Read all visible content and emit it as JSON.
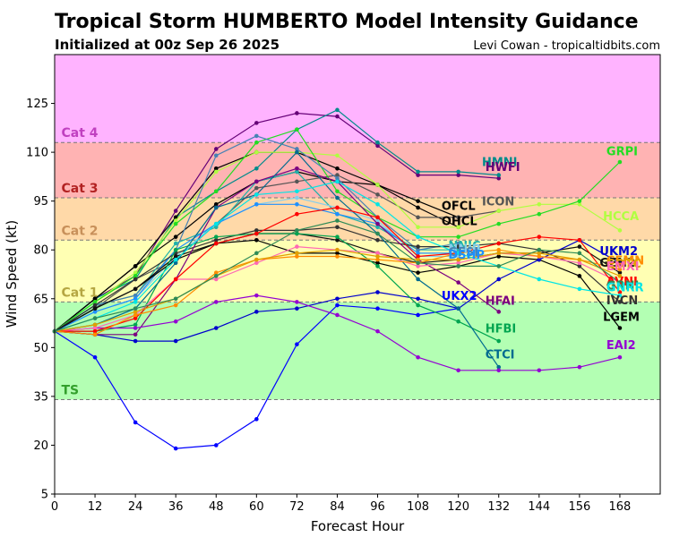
{
  "header": {
    "title": "Tropical Storm HUMBERTO Model Intensity Guidance",
    "subtitle": "Initialized at 00z Sep 26 2025",
    "credit": "Levi Cowan - tropicaltidbits.com"
  },
  "colors": {
    "axis": "#000000",
    "grid_line": "#777777"
  },
  "chart_data": {
    "type": "line",
    "xlabel": "Forecast Hour",
    "ylabel": "Wind Speed (kt)",
    "xlim": [
      0,
      180
    ],
    "ylim": [
      5,
      140
    ],
    "x_ticks": [
      0,
      12,
      24,
      36,
      48,
      60,
      72,
      84,
      96,
      108,
      120,
      132,
      144,
      156,
      168
    ],
    "y_ticks": [
      5,
      20,
      35,
      50,
      65,
      80,
      95,
      110,
      125
    ],
    "bands": [
      {
        "label": "TS",
        "from": 34,
        "to": 64,
        "color": "#b3ffb3",
        "text_color": "#33a02c"
      },
      {
        "label": "Cat 1",
        "from": 64,
        "to": 83,
        "color": "#ffffb3",
        "text_color": "#b5a642"
      },
      {
        "label": "Cat 2",
        "from": 83,
        "to": 96,
        "color": "#ffd9a8",
        "text_color": "#c8905a"
      },
      {
        "label": "Cat 3",
        "from": 96,
        "to": 113,
        "color": "#ffb3b3",
        "text_color": "#b22222"
      },
      {
        "label": "Cat 4",
        "from": 113,
        "to": 140,
        "color": "#ffb3ff",
        "text_color": "#c040c0"
      }
    ],
    "band_lines": [
      34,
      64,
      83,
      96,
      113
    ],
    "series": [
      {
        "name": "HWFI",
        "color": "#660077",
        "x": [
          0,
          12,
          24,
          36,
          48,
          60,
          72,
          84,
          96,
          108,
          120,
          132
        ],
        "values": [
          55,
          65,
          72,
          92,
          111,
          119,
          122,
          121,
          112,
          103,
          103,
          102
        ]
      },
      {
        "name": "HMNI",
        "color": "#008b8b",
        "x": [
          0,
          12,
          24,
          36,
          48,
          60,
          72,
          84,
          96,
          108,
          120,
          132
        ],
        "values": [
          55,
          65,
          71,
          90,
          98,
          105,
          117,
          123,
          113,
          104,
          104,
          103
        ]
      },
      {
        "name": "OFCL",
        "color": "#000000",
        "x": [
          0,
          12,
          24,
          36,
          48,
          60,
          72,
          84,
          96,
          108,
          120
        ],
        "values": [
          55,
          65,
          75,
          90,
          105,
          110,
          110,
          105,
          100,
          93,
          87
        ]
      },
      {
        "name": "OHCL",
        "color": "#000000",
        "x": [
          0,
          12,
          24,
          36,
          48,
          60,
          72,
          84,
          96,
          108,
          120
        ],
        "values": [
          55,
          65,
          75,
          84,
          94,
          101,
          104,
          101,
          100,
          95,
          90
        ]
      },
      {
        "name": "ICON",
        "color": "#555555",
        "x": [
          0,
          12,
          24,
          36,
          48,
          60,
          72,
          84,
          96,
          108,
          120,
          132
        ],
        "values": [
          55,
          62,
          71,
          77,
          88,
          99,
          101,
          103,
          97,
          90,
          90,
          92
        ]
      },
      {
        "name": "HCCA",
        "color": "#b0ff40",
        "x": [
          0,
          12,
          24,
          36,
          48,
          60,
          72,
          84,
          96,
          108,
          120,
          132,
          144,
          156,
          168
        ],
        "values": [
          55,
          64,
          73,
          89,
          104,
          110,
          110,
          109,
          100,
          87,
          87,
          92,
          94,
          94,
          86
        ]
      },
      {
        "name": "GRPI",
        "color": "#22dd22",
        "x": [
          0,
          12,
          24,
          36,
          48,
          60,
          72,
          84,
          96,
          108,
          120,
          132,
          144,
          156,
          168
        ],
        "values": [
          55,
          64,
          72,
          88,
          98,
          113,
          117,
          98,
          90,
          84,
          84,
          88,
          91,
          95,
          107
        ]
      },
      {
        "name": "NNIC",
        "color": "#20b2aa",
        "x": [
          0,
          12,
          24,
          36,
          48,
          60,
          72,
          84,
          96,
          108,
          120
        ],
        "values": [
          55,
          63,
          66,
          82,
          87,
          101,
          104,
          91,
          87,
          80,
          80
        ]
      },
      {
        "name": "NNIB",
        "color": "#87ceeb",
        "x": [
          0,
          12,
          24,
          36,
          48,
          60,
          72,
          84,
          96,
          108,
          120
        ],
        "values": [
          55,
          61,
          65,
          78,
          88,
          94,
          96,
          93,
          89,
          78,
          78
        ]
      },
      {
        "name": "GFSI",
        "color": "#4682b4",
        "x": [
          0,
          12,
          24,
          36,
          48,
          60,
          72,
          84,
          96,
          108,
          120
        ],
        "values": [
          55,
          63,
          66,
          80,
          109,
          115,
          111,
          102,
          90,
          80,
          82
        ]
      },
      {
        "name": "DSHP",
        "color": "#1e90ff",
        "x": [
          0,
          12,
          24,
          36,
          48,
          60,
          72,
          84,
          96,
          108,
          120
        ],
        "values": [
          55,
          61,
          65,
          80,
          88,
          94,
          94,
          91,
          88,
          79,
          79
        ]
      },
      {
        "name": "LGEM",
        "color": "#000000",
        "x": [
          0,
          12,
          24,
          36,
          48,
          60,
          72,
          84,
          96,
          108,
          120,
          132,
          144,
          156,
          168
        ],
        "values": [
          55,
          62,
          68,
          77,
          82,
          83,
          79,
          79,
          76,
          73,
          75,
          78,
          77,
          72,
          56
        ]
      },
      {
        "name": "IVCN",
        "color": "#333333",
        "x": [
          0,
          12,
          24,
          36,
          48,
          60,
          72,
          84,
          96,
          108,
          120,
          132,
          144,
          156,
          168
        ],
        "values": [
          55,
          63,
          71,
          79,
          83,
          86,
          86,
          87,
          83,
          81,
          81,
          82,
          80,
          75,
          64
        ]
      },
      {
        "name": "GEN2",
        "color": "#111111",
        "x": [
          0,
          12,
          24,
          36,
          48,
          60,
          72,
          84,
          96,
          108,
          120,
          132,
          144,
          156,
          168
        ],
        "values": [
          55,
          62,
          68,
          78,
          82,
          85,
          85,
          83,
          79,
          76,
          77,
          79,
          79,
          81,
          73
        ]
      },
      {
        "name": "UKM2",
        "color": "#0000cd",
        "x": [
          0,
          12,
          24,
          36,
          48,
          60,
          72,
          84,
          96,
          108,
          120,
          132,
          144,
          156,
          168
        ],
        "values": [
          55,
          54,
          52,
          52,
          56,
          61,
          62,
          65,
          67,
          65,
          62,
          71,
          77,
          83,
          76
        ]
      },
      {
        "name": "UKX2",
        "color": "#0000ff",
        "x": [
          0,
          12,
          24,
          36,
          48,
          60,
          72,
          84,
          96,
          108,
          120
        ],
        "values": [
          55,
          47,
          27,
          19,
          20,
          28,
          51,
          63,
          62,
          60,
          62
        ]
      },
      {
        "name": "HFAI",
        "color": "#7b0080",
        "x": [
          0,
          12,
          24,
          36,
          48,
          60,
          72,
          84,
          96,
          108,
          120,
          132
        ],
        "values": [
          55,
          54,
          54,
          71,
          93,
          101,
          105,
          101,
          88,
          77,
          70,
          61
        ]
      },
      {
        "name": "HFBI",
        "color": "#00a550",
        "x": [
          0,
          12,
          24,
          36,
          48,
          60,
          72,
          84,
          96,
          108,
          120,
          132
        ],
        "values": [
          55,
          55,
          57,
          80,
          84,
          85,
          85,
          84,
          75,
          63,
          58,
          52
        ]
      },
      {
        "name": "CTCI",
        "color": "#006b8f",
        "x": [
          0,
          12,
          24,
          36,
          48,
          60,
          72,
          84,
          96,
          108,
          120,
          132
        ],
        "values": [
          55,
          57,
          62,
          76,
          93,
          97,
          110,
          96,
          85,
          71,
          62,
          44
        ]
      },
      {
        "name": "EAI2",
        "color": "#9400d3",
        "x": [
          0,
          12,
          24,
          36,
          48,
          60,
          72,
          84,
          96,
          108,
          120,
          132,
          144,
          156,
          168
        ],
        "values": [
          55,
          56,
          56,
          58,
          64,
          66,
          64,
          60,
          55,
          47,
          43,
          43,
          43,
          44,
          47
        ]
      },
      {
        "name": "EMXI",
        "color": "#ff69b4",
        "x": [
          0,
          12,
          24,
          36,
          48,
          60,
          72,
          84,
          96,
          108,
          120,
          132,
          144,
          156,
          168
        ],
        "values": [
          55,
          56,
          60,
          71,
          71,
          76,
          81,
          80,
          79,
          75,
          76,
          79,
          78,
          76,
          70
        ]
      },
      {
        "name": "AVNI",
        "color": "#ff0000",
        "x": [
          0,
          12,
          24,
          36,
          48,
          60,
          72,
          84,
          96,
          108,
          120,
          132,
          144,
          156,
          168
        ],
        "values": [
          55,
          55,
          59,
          71,
          82,
          85,
          91,
          93,
          90,
          78,
          79,
          82,
          84,
          83,
          67
        ]
      },
      {
        "name": "CEMN",
        "color": "#ff8c00",
        "x": [
          0,
          12,
          24,
          36,
          48,
          60,
          72,
          84,
          96,
          108,
          120,
          132,
          144,
          156,
          168
        ],
        "values": [
          55,
          54,
          60,
          63,
          73,
          77,
          78,
          78,
          77,
          76,
          79,
          80,
          78,
          77,
          74
        ]
      },
      {
        "name": "COTC",
        "color": "#e0a000",
        "x": [
          0,
          12,
          24,
          36,
          48,
          60,
          72,
          84,
          96,
          108,
          120,
          132,
          144,
          156,
          168
        ],
        "values": [
          55,
          57,
          61,
          65,
          72,
          77,
          79,
          80,
          78,
          77,
          77,
          79,
          79,
          77,
          72
        ]
      },
      {
        "name": "GNRR",
        "color": "#00e5e5",
        "x": [
          0,
          12,
          24,
          36,
          48,
          60,
          72,
          84,
          96,
          108,
          120,
          132,
          144,
          156,
          168
        ],
        "values": [
          55,
          59,
          64,
          77,
          88,
          97,
          98,
          101,
          94,
          84,
          79,
          75,
          71,
          68,
          66
        ]
      },
      {
        "name": "GRNI",
        "color": "#2e8b57",
        "x": [
          0,
          12,
          24,
          36,
          48,
          60,
          72,
          84,
          96,
          108,
          120,
          132,
          144,
          156,
          168
        ],
        "values": [
          55,
          59,
          62,
          65,
          72,
          79,
          86,
          89,
          85,
          76,
          75,
          75,
          80,
          79,
          70
        ]
      }
    ],
    "labels": [
      {
        "text": "HMNI",
        "color": "#008b8b",
        "x": 127,
        "y": 105.8
      },
      {
        "text": "HWFI",
        "color": "#660077",
        "x": 128,
        "y": 104.2
      },
      {
        "text": "GRPI",
        "color": "#22dd22",
        "x": 164,
        "y": 109
      },
      {
        "text": "OFCL",
        "color": "#000000",
        "x": 115,
        "y": 92.3
      },
      {
        "text": "OHCL",
        "color": "#000000",
        "x": 115,
        "y": 87.6
      },
      {
        "text": "ICON",
        "color": "#555555",
        "x": 127,
        "y": 93.7
      },
      {
        "text": "HCCA",
        "color": "#b0ff40",
        "x": 163,
        "y": 89.1
      },
      {
        "text": "NNIC",
        "color": "#20b2aa",
        "x": 117,
        "y": 80
      },
      {
        "text": "NNIB",
        "color": "#87ceeb",
        "x": 117,
        "y": 79.1
      },
      {
        "text": "GFSI",
        "color": "#4682b4",
        "x": 117,
        "y": 78.2
      },
      {
        "text": "DSHP",
        "color": "#1e90ff",
        "x": 117,
        "y": 77.3
      },
      {
        "text": "UKM2",
        "color": "#0000cd",
        "x": 162,
        "y": 78.4
      },
      {
        "text": "GEN2",
        "color": "#111111",
        "x": 162,
        "y": 74.8
      },
      {
        "text": "CEMN",
        "color": "#ff8c00",
        "x": 164,
        "y": 75.5
      },
      {
        "text": "COTC",
        "color": "#e0a000",
        "x": 164,
        "y": 74.6
      },
      {
        "text": "EMXI",
        "color": "#ff69b4",
        "x": 164,
        "y": 73.7
      },
      {
        "text": "AVNI",
        "color": "#ff0000",
        "x": 164,
        "y": 69.1
      },
      {
        "text": "GRNI",
        "color": "#2e8b57",
        "x": 164,
        "y": 67.8
      },
      {
        "text": "GNRR",
        "color": "#00e5e5",
        "x": 164,
        "y": 67.3
      },
      {
        "text": "IVCN",
        "color": "#333333",
        "x": 164,
        "y": 63.3
      },
      {
        "text": "LGEM",
        "color": "#000000",
        "x": 163,
        "y": 58.2
      },
      {
        "text": "UKX2",
        "color": "#0000ff",
        "x": 115,
        "y": 64.6
      },
      {
        "text": "HFAI",
        "color": "#7b0080",
        "x": 128,
        "y": 63.1
      },
      {
        "text": "HFBI",
        "color": "#00a550",
        "x": 128,
        "y": 54.6
      },
      {
        "text": "CTCI",
        "color": "#006b8f",
        "x": 128,
        "y": 46.6
      },
      {
        "text": "EAI2",
        "color": "#9400d3",
        "x": 164,
        "y": 49.6
      }
    ]
  }
}
